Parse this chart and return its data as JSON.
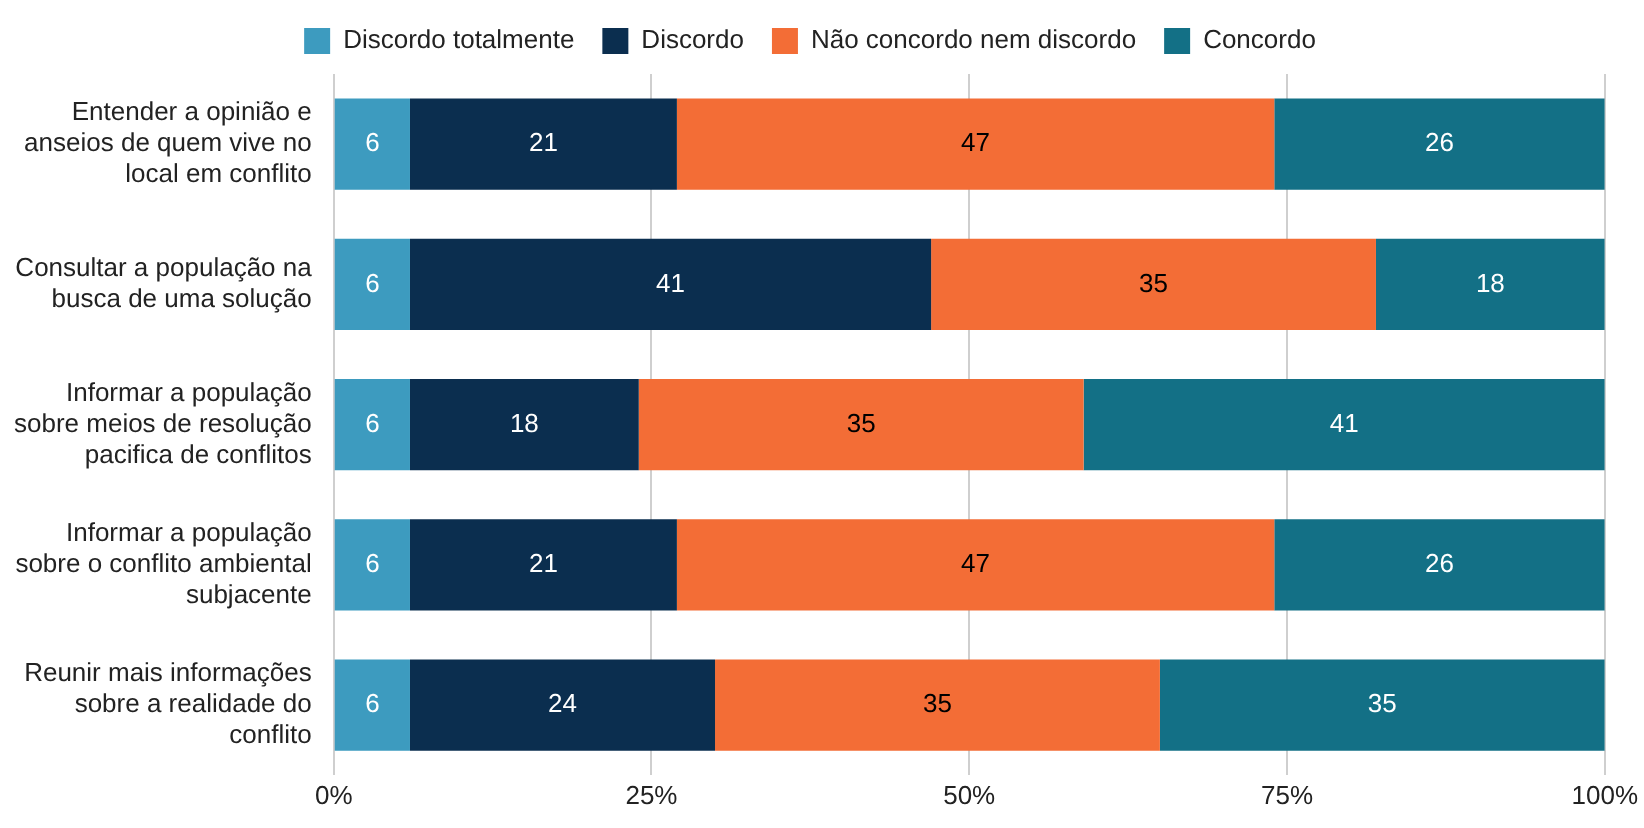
{
  "chart_data": {
    "type": "bar",
    "orientation": "horizontal",
    "stacked": true,
    "categories": [
      "Entender a opinião e anseios de quem vive no local em conflito",
      "Consultar a população na busca de uma solução",
      "Informar a população sobre meios de resolução pacifica de conflitos",
      "Informar a população sobre o conflito ambiental subjacente",
      "Reunir mais informações sobre a realidade do conflito"
    ],
    "series": [
      {
        "name": "Discordo totalmente",
        "color": "#3d9bbf",
        "values": [
          6,
          6,
          6,
          6,
          6
        ]
      },
      {
        "name": "Discordo",
        "color": "#0b2e4f",
        "values": [
          21,
          41,
          18,
          21,
          24
        ]
      },
      {
        "name": "Não concordo nem discordo",
        "color": "#f36d36",
        "values": [
          47,
          35,
          35,
          47,
          35
        ]
      },
      {
        "name": "Concordo",
        "color": "#137086",
        "values": [
          26,
          18,
          41,
          26,
          35
        ]
      }
    ],
    "xlim": [
      0,
      100
    ],
    "xticks": [
      {
        "value": 0,
        "label": "0%"
      },
      {
        "value": 25,
        "label": "25%"
      },
      {
        "value": 50,
        "label": "50%"
      },
      {
        "value": 75,
        "label": "75%"
      },
      {
        "value": 100,
        "label": "100%"
      }
    ],
    "grid": "x",
    "legend": "top",
    "data_labels": true
  }
}
